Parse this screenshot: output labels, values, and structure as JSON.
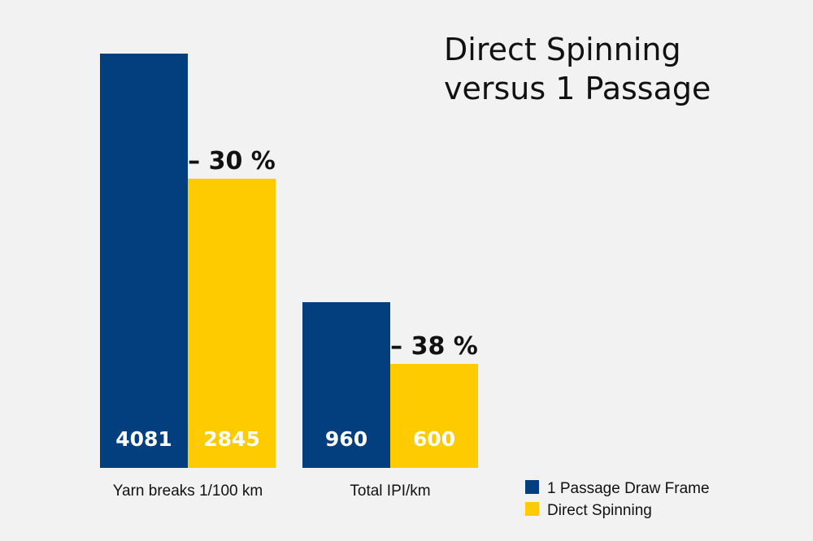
{
  "chart_data": {
    "type": "bar",
    "title": [
      "Direct Spinning",
      "versus 1 Passage"
    ],
    "categories": [
      "Yarn breaks 1/100 km",
      "Total IPI/km"
    ],
    "series": [
      {
        "name": "1 Passage Draw Frame",
        "color": "#033f7f",
        "values": [
          4081,
          960
        ]
      },
      {
        "name": "Direct Spinning",
        "color": "#fecb00",
        "values": [
          2845,
          600
        ]
      }
    ],
    "value_labels": [
      [
        "4081",
        "960"
      ],
      [
        "2845",
        "600"
      ]
    ],
    "delta_labels": [
      "– 30 %",
      "– 38 %"
    ],
    "panel_scales": [
      {
        "category": "Yarn breaks 1/100 km",
        "ylim": [
          0,
          4081
        ]
      },
      {
        "category": "Total IPI/km",
        "ylim": [
          0,
          2400
        ]
      }
    ],
    "legend_placement": "bottom-right",
    "grid": false
  }
}
